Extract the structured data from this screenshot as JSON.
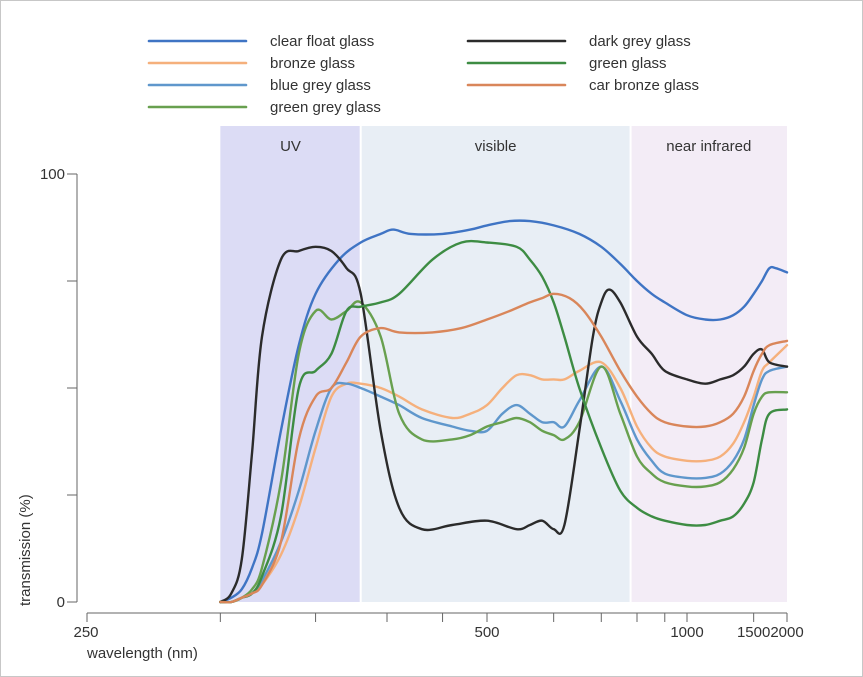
{
  "chart_data": {
    "type": "line",
    "xlabel": "wavelength (nm)",
    "ylabel": "transmission (%)",
    "xscale": "reciprocal",
    "xlim": [
      250,
      2000
    ],
    "ylim": [
      0,
      100
    ],
    "xticks": [
      250,
      300,
      350,
      400,
      450,
      500,
      600,
      700,
      800,
      900,
      1000,
      1500,
      2000
    ],
    "xtick_labels": [
      {
        "value": 250,
        "text": "250"
      },
      {
        "value": 500,
        "text": "500"
      },
      {
        "value": 1000,
        "text": "1000"
      },
      {
        "value": 1500,
        "text": "1500"
      },
      {
        "value": 2000,
        "text": "2000"
      }
    ],
    "yticks": [
      0,
      25,
      50,
      75,
      100
    ],
    "ytick_labels": [
      {
        "value": 0,
        "text": "0"
      },
      {
        "value": 100,
        "text": "100"
      }
    ],
    "regions": [
      {
        "label": "UV",
        "range": [
          300,
          380
        ],
        "color": "#dcdcf5"
      },
      {
        "label": "visible",
        "range": [
          380,
          780
        ],
        "color": "#e8eef5"
      },
      {
        "label": "near infrared",
        "range": [
          780,
          2000
        ],
        "color": "#f3ecf6"
      }
    ],
    "grid": false,
    "legend_position": "top",
    "series": [
      {
        "name": "clear float glass",
        "color": "#3f74c4",
        "x": [
          300,
          305,
          310,
          315,
          320,
          330,
          340,
          350,
          365,
          380,
          395,
          405,
          420,
          450,
          480,
          500,
          530,
          560,
          600,
          650,
          700,
          750,
          800,
          850,
          900,
          1000,
          1100,
          1200,
          1300,
          1400,
          1500,
          1600,
          1700,
          1800,
          2000
        ],
        "values": [
          0,
          1,
          3,
          8,
          16,
          40,
          60,
          72,
          80,
          84,
          86,
          87,
          86,
          86,
          87,
          88,
          89,
          89,
          88,
          86,
          83,
          79,
          75,
          72,
          70,
          67,
          66,
          66,
          67,
          69,
          72,
          75,
          78,
          78,
          77
        ]
      },
      {
        "name": "bronze glass",
        "color": "#f5b07c",
        "x": [
          300,
          305,
          310,
          315,
          320,
          330,
          340,
          350,
          360,
          370,
          380,
          395,
          410,
          430,
          460,
          480,
          500,
          520,
          540,
          560,
          580,
          600,
          620,
          650,
          700,
          750,
          800,
          850,
          900,
          1000,
          1100,
          1200,
          1300,
          1400,
          1500,
          1600,
          1700,
          2000
        ],
        "values": [
          0,
          0,
          1,
          2,
          4,
          11,
          22,
          36,
          48,
          51,
          51,
          50,
          48,
          45,
          43,
          44,
          46,
          50,
          53,
          53,
          52,
          52,
          52,
          54,
          56,
          50,
          41,
          36,
          34,
          33,
          33,
          34,
          37,
          42,
          48,
          54,
          56,
          60
        ]
      },
      {
        "name": "blue grey glass",
        "color": "#5f97cc",
        "x": [
          300,
          305,
          310,
          315,
          320,
          330,
          340,
          350,
          360,
          370,
          380,
          395,
          410,
          430,
          460,
          480,
          500,
          520,
          540,
          560,
          580,
          600,
          620,
          650,
          700,
          750,
          800,
          850,
          900,
          1000,
          1100,
          1200,
          1300,
          1400,
          1500,
          1600,
          1700,
          2000
        ],
        "values": [
          0,
          0,
          1,
          2,
          5,
          14,
          26,
          40,
          50,
          51,
          50,
          48,
          46,
          43,
          41,
          40,
          40,
          44,
          46,
          44,
          42,
          42,
          41,
          47,
          55,
          47,
          38,
          33,
          30,
          29,
          29,
          30,
          33,
          38,
          46,
          52,
          54,
          55
        ]
      },
      {
        "name": "green grey glass",
        "color": "#68a04f",
        "x": [
          300,
          305,
          310,
          315,
          320,
          330,
          340,
          350,
          360,
          370,
          380,
          395,
          410,
          430,
          460,
          480,
          500,
          520,
          540,
          560,
          580,
          600,
          620,
          650,
          700,
          750,
          800,
          850,
          900,
          1000,
          1100,
          1200,
          1300,
          1400,
          1500,
          1600,
          1700,
          2000
        ],
        "values": [
          0,
          0,
          1,
          3,
          8,
          28,
          58,
          68,
          66,
          68,
          70,
          62,
          44,
          38,
          38,
          39,
          41,
          42,
          43,
          42,
          40,
          39,
          38,
          42,
          55,
          44,
          34,
          30,
          28,
          27,
          27,
          28,
          31,
          36,
          44,
          48,
          49,
          49
        ]
      },
      {
        "name": "dark grey glass",
        "color": "#2b2b2b",
        "x": [
          300,
          305,
          310,
          315,
          320,
          330,
          340,
          350,
          360,
          370,
          380,
          395,
          410,
          430,
          460,
          500,
          540,
          560,
          580,
          600,
          620,
          650,
          680,
          700,
          720,
          750,
          800,
          850,
          900,
          1000,
          1100,
          1200,
          1300,
          1400,
          1500,
          1600,
          1700,
          2000
        ],
        "values": [
          0,
          2,
          10,
          35,
          62,
          80,
          82,
          83,
          82,
          78,
          72,
          40,
          22,
          17,
          18,
          19,
          17,
          18,
          19,
          17,
          18,
          40,
          62,
          70,
          73,
          70,
          62,
          58,
          54,
          52,
          51,
          52,
          53,
          55,
          58,
          59,
          56,
          55
        ]
      },
      {
        "name": "green glass",
        "color": "#3d8c43",
        "x": [
          300,
          305,
          310,
          315,
          320,
          330,
          340,
          350,
          360,
          370,
          380,
          395,
          410,
          440,
          470,
          500,
          540,
          560,
          580,
          600,
          620,
          650,
          700,
          750,
          800,
          850,
          900,
          1000,
          1100,
          1200,
          1300,
          1400,
          1500,
          1600,
          1700,
          2000
        ],
        "values": [
          0,
          0,
          1,
          2,
          6,
          20,
          50,
          54,
          58,
          68,
          69,
          70,
          72,
          80,
          84,
          84,
          83,
          80,
          76,
          70,
          62,
          50,
          36,
          26,
          22,
          20,
          19,
          18,
          18,
          19,
          20,
          23,
          28,
          38,
          44,
          45
        ]
      },
      {
        "name": "car bronze glass",
        "color": "#d9865a",
        "x": [
          300,
          305,
          310,
          315,
          320,
          330,
          340,
          350,
          360,
          370,
          380,
          395,
          410,
          440,
          470,
          500,
          530,
          560,
          580,
          600,
          630,
          660,
          700,
          750,
          800,
          850,
          900,
          1000,
          1100,
          1200,
          1300,
          1400,
          1500,
          1600,
          1700,
          2000
        ],
        "values": [
          0,
          0,
          1,
          2,
          4,
          14,
          38,
          48,
          50,
          56,
          62,
          64,
          63,
          63,
          64,
          66,
          68,
          70,
          71,
          72,
          71,
          68,
          62,
          54,
          48,
          44,
          42,
          41,
          41,
          42,
          44,
          48,
          54,
          58,
          60,
          61
        ]
      }
    ]
  }
}
